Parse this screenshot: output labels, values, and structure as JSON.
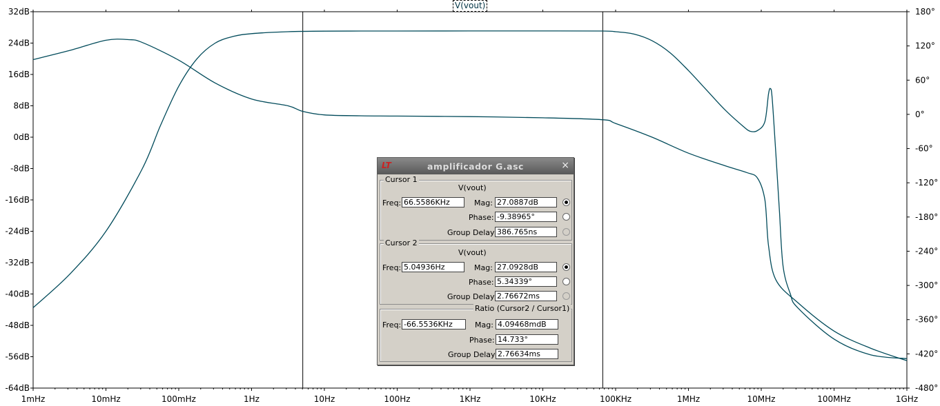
{
  "trace_name": "V(vout)",
  "chart_data": {
    "type": "line",
    "x_scale": "log",
    "xlim": [
      "1mHz",
      "1GHz"
    ],
    "x_ticks": [
      "1mHz",
      "10mHz",
      "100mHz",
      "1Hz",
      "10Hz",
      "100Hz",
      "1KHz",
      "10KHz",
      "100KHz",
      "1MHz",
      "10MHz",
      "100MHz",
      "1GHz"
    ],
    "y_left_ticks": [
      "32dB",
      "24dB",
      "16dB",
      "8dB",
      "0dB",
      "-8dB",
      "-16dB",
      "-24dB",
      "-32dB",
      "-40dB",
      "-48dB",
      "-56dB",
      "-64dB"
    ],
    "y_left_range": [
      -64,
      32
    ],
    "y_right_ticks": [
      "180°",
      "120°",
      "60°",
      "0°",
      "-60°",
      "-120°",
      "-180°",
      "-240°",
      "-300°",
      "-360°",
      "-420°",
      "-480°"
    ],
    "y_right_range": [
      -480,
      180
    ],
    "grid": false,
    "cursor_lines_hz": [
      5.04936,
      66558.6
    ],
    "series": [
      {
        "axis": "left",
        "unit": "dB",
        "color": "#004a5a",
        "points": [
          [
            -3,
            -43.5
          ],
          [
            -2.5,
            -35
          ],
          [
            -2,
            -24
          ],
          [
            -1.5,
            -8
          ],
          [
            -1.25,
            3
          ],
          [
            -1,
            13
          ],
          [
            -0.75,
            20
          ],
          [
            -0.5,
            24
          ],
          [
            -0.25,
            25.7
          ],
          [
            0,
            26.4
          ],
          [
            0.5,
            26.9
          ],
          [
            1,
            27.05
          ],
          [
            1.5,
            27.07
          ],
          [
            2,
            27.08
          ],
          [
            3,
            27.09
          ],
          [
            4,
            27.09
          ],
          [
            4.82,
            27.08
          ],
          [
            5,
            26.9
          ],
          [
            5.25,
            26.3
          ],
          [
            5.5,
            24.6
          ],
          [
            5.75,
            21.5
          ],
          [
            6,
            17
          ],
          [
            6.25,
            12
          ],
          [
            6.5,
            7
          ],
          [
            6.75,
            2.8
          ],
          [
            6.85,
            1.5
          ],
          [
            6.95,
            1.7
          ],
          [
            7.05,
            4
          ],
          [
            7.1,
            11
          ],
          [
            7.125,
            12.4
          ],
          [
            7.15,
            10
          ],
          [
            7.2,
            -4
          ],
          [
            7.25,
            -19
          ],
          [
            7.3,
            -33
          ],
          [
            7.4,
            -40
          ],
          [
            7.5,
            -43.5
          ],
          [
            8,
            -51.5
          ],
          [
            8.5,
            -55.5
          ],
          [
            9,
            -56.5
          ]
        ]
      },
      {
        "axis": "right",
        "unit": "°",
        "color": "#004a5a",
        "points": [
          [
            -3,
            96
          ],
          [
            -2.5,
            112
          ],
          [
            -2,
            130
          ],
          [
            -1.69,
            131
          ],
          [
            -1.5,
            126
          ],
          [
            -1,
            95
          ],
          [
            -0.5,
            55
          ],
          [
            0,
            27
          ],
          [
            0.5,
            15
          ],
          [
            0.7,
            5.3
          ],
          [
            1,
            -1
          ],
          [
            1.5,
            -2.5
          ],
          [
            2,
            -3
          ],
          [
            3,
            -4
          ],
          [
            4,
            -6
          ],
          [
            4.82,
            -9.4
          ],
          [
            5,
            -16
          ],
          [
            5.5,
            -40
          ],
          [
            6,
            -68
          ],
          [
            6.5,
            -90
          ],
          [
            6.8,
            -102
          ],
          [
            6.95,
            -112
          ],
          [
            7.05,
            -150
          ],
          [
            7.1,
            -230
          ],
          [
            7.2,
            -290
          ],
          [
            7.5,
            -330
          ],
          [
            8,
            -380
          ],
          [
            8.5,
            -410
          ],
          [
            9,
            -432
          ]
        ]
      }
    ]
  },
  "dialog": {
    "logo": "LT",
    "title": "amplificador G.asc",
    "close": "×",
    "cursor1": {
      "legend": "Cursor 1",
      "trace": "V(vout)",
      "freq_label": "Freq:",
      "freq": "66.5586KHz",
      "mag_label": "Mag:",
      "mag": "27.0887dB",
      "phase_label": "Phase:",
      "phase": "-9.38965°",
      "gd_label": "Group Delay:",
      "gd": "386.765ns"
    },
    "cursor2": {
      "legend": "Cursor 2",
      "trace": "V(vout)",
      "freq_label": "Freq:",
      "freq": "5.04936Hz",
      "mag_label": "Mag:",
      "mag": "27.0928dB",
      "phase_label": "Phase:",
      "phase": "5.34339°",
      "gd_label": "Group Delay:",
      "gd": "2.76672ms"
    },
    "ratio": {
      "legend": "Ratio (Cursor2 / Cursor1)",
      "freq_label": "Freq:",
      "freq": "-66.5536KHz",
      "mag_label": "Mag:",
      "mag": "4.09468mdB",
      "phase_label": "Phase:",
      "phase": "14.733°",
      "gd_label": "Group Delay:",
      "gd": "2.76634ms"
    }
  }
}
